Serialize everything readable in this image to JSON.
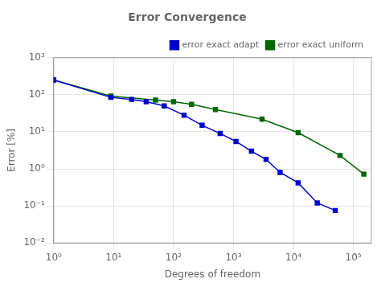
{
  "chart_data": {
    "type": "line",
    "title": "Error Convergence",
    "xlabel": "Degrees of freedom",
    "ylabel": "Error [%]",
    "series": [
      {
        "name": "error exact adapt",
        "color": "#0000cc",
        "marker": "square",
        "line_style": "solid",
        "x": [
          1,
          9,
          20,
          35,
          70,
          150,
          300,
          600,
          1100,
          2000,
          3500,
          6000,
          12000,
          25000,
          50000
        ],
        "values": [
          250,
          85,
          75,
          65,
          50,
          28,
          15,
          9,
          5.5,
          3.0,
          1.8,
          0.8,
          0.42,
          0.12,
          0.075
        ]
      },
      {
        "name": "error exact uniform",
        "color": "#006600",
        "marker": "square",
        "line_style": "solid",
        "x": [
          1,
          9,
          50,
          100,
          200,
          500,
          3000,
          12000,
          60000,
          150000
        ],
        "values": [
          250,
          92,
          72,
          65,
          55,
          40,
          22,
          9.5,
          2.3,
          0.72
        ]
      }
    ],
    "xlim": [
      1.0,
      200000.0
    ],
    "ylim": [
      0.01,
      1000.0
    ],
    "xticks": [
      {
        "value": 1,
        "label": "10⁰"
      },
      {
        "value": 10,
        "label": "10¹"
      },
      {
        "value": 100,
        "label": "10²"
      },
      {
        "value": 1000,
        "label": "10³"
      },
      {
        "value": 10000,
        "label": "10⁴"
      },
      {
        "value": 100000,
        "label": "10⁵"
      }
    ],
    "yticks": [
      {
        "value": 0.01,
        "label": "10⁻²"
      },
      {
        "value": 0.1,
        "label": "10⁻¹"
      },
      {
        "value": 1,
        "label": "10⁰"
      },
      {
        "value": 10,
        "label": "10¹"
      },
      {
        "value": 100,
        "label": "10²"
      },
      {
        "value": 1000,
        "label": "10³"
      }
    ],
    "log": true,
    "grid": true,
    "legend": "upper right"
  }
}
